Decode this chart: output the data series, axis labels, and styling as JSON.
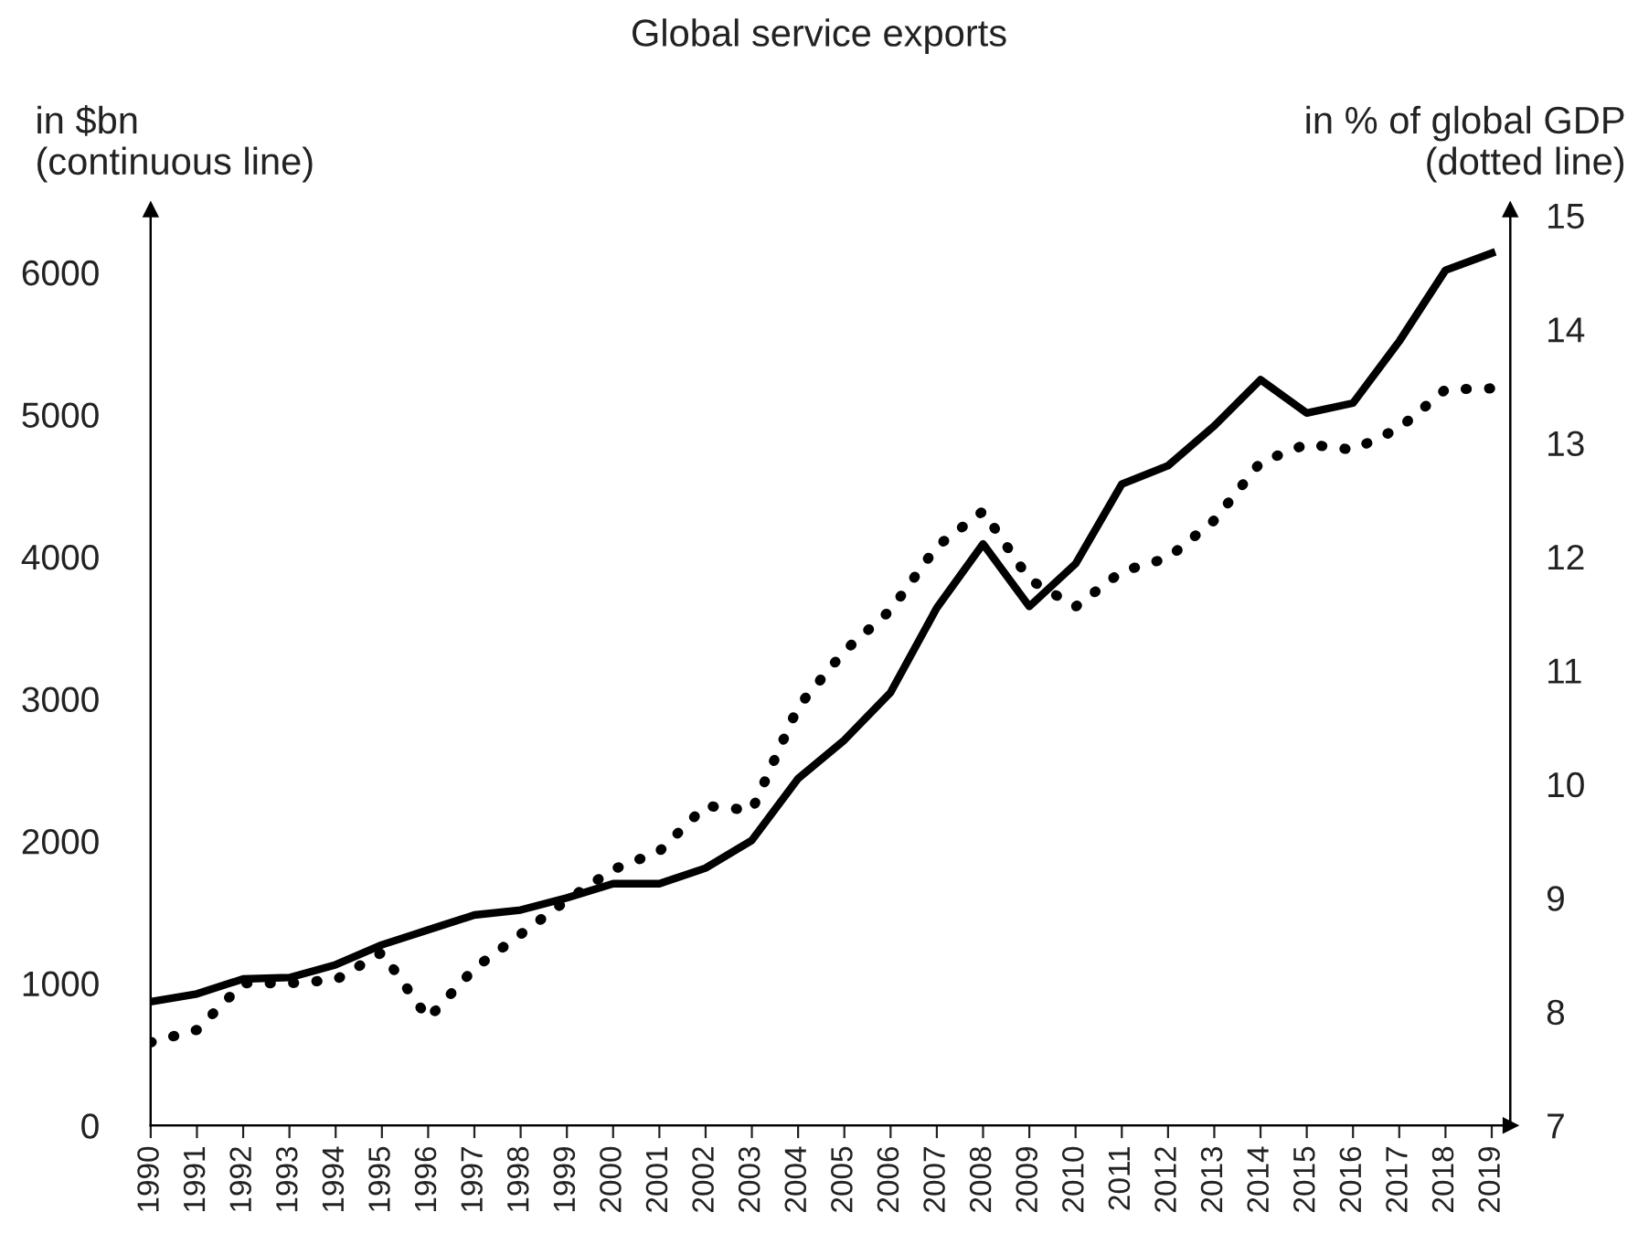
{
  "chart_data": {
    "type": "line",
    "title": "Global service exports",
    "ylabel": "in $bn\n(continuous line)",
    "y2label": "in % of global GDP\n(dotted line)",
    "x": [
      1990,
      1991,
      1992,
      1993,
      1994,
      1995,
      1996,
      1997,
      1998,
      1999,
      2000,
      2001,
      2002,
      2003,
      2004,
      2005,
      2006,
      2007,
      2008,
      2009,
      2010,
      2011,
      2012,
      2013,
      2014,
      2015,
      2016,
      2017,
      2018,
      2019
    ],
    "xlim": [
      1990,
      2019.4
    ],
    "xticks": [
      1990,
      1991,
      1992,
      1993,
      1994,
      1995,
      1996,
      1997,
      1998,
      1999,
      2000,
      2001,
      2002,
      2003,
      2004,
      2005,
      2006,
      2007,
      2008,
      2009,
      2010,
      2011,
      2012,
      2013,
      2014,
      2015,
      2016,
      2017,
      2018,
      2019
    ],
    "ylim": [
      0,
      6440
    ],
    "yticks": [
      0,
      1000,
      2000,
      3000,
      4000,
      5000,
      6000
    ],
    "y2lim": [
      7,
      15.05
    ],
    "y2ticks": [
      7,
      8,
      9,
      10,
      11,
      12,
      13,
      14,
      15
    ],
    "grid": false,
    "legend": false,
    "series": [
      {
        "color": "#000000",
        "line_style": "solid",
        "values": [
          870,
          925,
          1030,
          1040,
          1130,
          1270,
          1375,
          1480,
          1515,
          1600,
          1700,
          1700,
          1810,
          2005,
          2440,
          2710,
          3045,
          3640,
          4090,
          3650,
          3950,
          4510,
          4640,
          4920,
          5245,
          5010,
          5080,
          5515,
          6015,
          6135
        ]
      },
      {
        "color": "#000000",
        "line_style": "dotted",
        "axis": "y2",
        "values": [
          7.73,
          7.84,
          8.25,
          8.25,
          8.28,
          8.52,
          7.94,
          8.38,
          8.68,
          8.98,
          9.25,
          9.41,
          9.81,
          9.77,
          10.68,
          11.17,
          11.53,
          12.09,
          12.4,
          11.8,
          11.56,
          11.87,
          11.99,
          12.32,
          12.83,
          12.99,
          12.94,
          13.13,
          13.47,
          13.48
        ]
      }
    ]
  }
}
